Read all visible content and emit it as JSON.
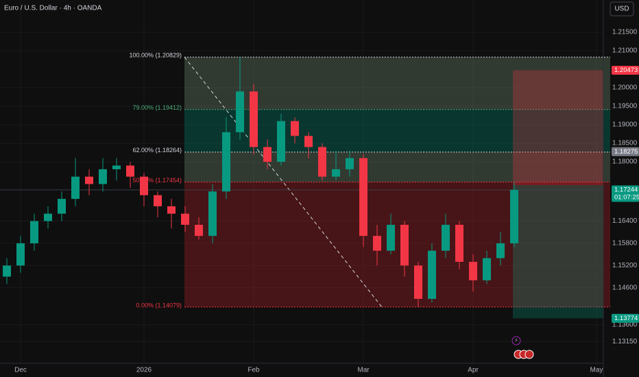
{
  "chart_data": {
    "type": "candlestick",
    "title": "Euro / U.S. Dollar · 4h · OANDA",
    "currency": "USD",
    "categories": [
      null,
      "Dec",
      null,
      null,
      null,
      null,
      null,
      null,
      null,
      null,
      "2026",
      null,
      null,
      null,
      null,
      null,
      null,
      null,
      "Feb",
      null,
      null,
      null,
      null,
      null,
      null,
      null,
      "Mar",
      null,
      null,
      null,
      null,
      null,
      null,
      null,
      "Apr",
      null,
      null,
      null,
      null,
      null,
      null,
      null,
      null,
      "May"
    ],
    "ohlc": {
      "open": [
        1.149,
        1.152,
        1.158,
        1.164,
        1.166,
        1.17,
        1.176,
        1.174,
        1.178,
        1.179,
        1.176,
        1.171,
        1.168,
        1.166,
        1.163,
        1.16,
        1.172,
        1.188,
        1.199,
        1.184,
        1.18,
        1.191,
        1.187,
        1.184,
        1.176,
        1.178,
        1.181,
        1.16,
        1.156,
        1.163,
        1.152,
        1.143,
        1.156,
        1.163,
        1.153,
        1.148,
        1.154,
        1.158,
        null,
        null,
        null,
        null,
        null,
        null
      ],
      "high": [
        1.154,
        1.16,
        1.166,
        1.168,
        1.172,
        1.181,
        1.178,
        1.181,
        1.181,
        1.18,
        1.177,
        1.172,
        1.17,
        1.168,
        1.165,
        1.174,
        1.192,
        1.20829,
        1.201,
        1.186,
        1.193,
        1.192,
        1.188,
        1.185,
        1.183,
        1.183,
        1.182,
        1.163,
        1.166,
        1.164,
        1.153,
        1.158,
        1.166,
        1.164,
        1.155,
        1.156,
        1.161,
        1.1745,
        null,
        null,
        null,
        null,
        null,
        null
      ],
      "low": [
        1.147,
        1.15,
        1.156,
        1.162,
        1.164,
        1.168,
        1.171,
        1.172,
        1.175,
        1.173,
        1.168,
        1.165,
        1.162,
        1.161,
        1.159,
        1.158,
        1.17,
        1.186,
        1.182,
        1.178,
        1.179,
        1.185,
        1.181,
        1.175,
        1.175,
        1.176,
        1.157,
        1.152,
        1.155,
        1.149,
        1.1408,
        1.142,
        1.154,
        1.151,
        1.145,
        1.147,
        1.152,
        1.157,
        null,
        null,
        null,
        null,
        null,
        null
      ],
      "close": [
        1.152,
        1.158,
        1.164,
        1.166,
        1.17,
        1.176,
        1.174,
        1.178,
        1.179,
        1.176,
        1.171,
        1.168,
        1.166,
        1.163,
        1.16,
        1.172,
        1.188,
        1.199,
        1.184,
        1.18,
        1.191,
        1.187,
        1.184,
        1.176,
        1.178,
        1.181,
        1.16,
        1.156,
        1.163,
        1.152,
        1.143,
        1.156,
        1.163,
        1.153,
        1.148,
        1.154,
        1.158,
        1.17244,
        null,
        null,
        null,
        null,
        null,
        null
      ]
    },
    "up_color": "#089981",
    "down_color": "#f23645",
    "ylim": [
      1.1256,
      1.2237
    ],
    "yticks": [
      {
        "value": 1.215,
        "label": "1.21500"
      },
      {
        "value": 1.21,
        "label": "1.21000"
      },
      {
        "value": 1.2,
        "label": "1.20000"
      },
      {
        "value": 1.195,
        "label": "1.19500"
      },
      {
        "value": 1.19,
        "label": "1.19000"
      },
      {
        "value": 1.185,
        "label": "1.18500"
      },
      {
        "value": 1.18,
        "label": "1.18000"
      },
      {
        "value": 1.164,
        "label": "1.16400"
      },
      {
        "value": 1.158,
        "label": "1.15800"
      },
      {
        "value": 1.152,
        "label": "1.15200"
      },
      {
        "value": 1.146,
        "label": "1.14600"
      },
      {
        "value": 1.136,
        "label": "1.13600"
      },
      {
        "value": 1.1315,
        "label": "1.13150"
      }
    ],
    "grid": true,
    "fib": {
      "levels": [
        {
          "label": "100.00% (1.20829)",
          "value": 1.20829,
          "color": "#d1d4dc"
        },
        {
          "label": "79.00% (1.19412)",
          "value": 1.19412,
          "color": "#4caf7d"
        },
        {
          "label": "62.00% (1.18264)",
          "value": 1.18264,
          "color": "#d1d4dc"
        },
        {
          "label": "50.00% (1.17454)",
          "value": 1.17454,
          "color": "#f23645"
        },
        {
          "label": "0.00% (1.14079)",
          "value": 1.14079,
          "color": "#f23645"
        }
      ],
      "zone_colors": [
        "rgba(120,150,120,0.32)",
        "rgba(0,120,100,0.38)",
        "rgba(120,150,120,0.32)",
        "rgba(150,30,35,0.42)"
      ]
    },
    "position": {
      "stop": 1.20473,
      "entry": 1.1737,
      "target": 1.13774
    },
    "price_labels": [
      {
        "value": 1.20473,
        "color": "#f23645"
      },
      {
        "value": 1.18275,
        "color": "#787b86"
      },
      {
        "value": 1.17244,
        "color": "#089981"
      },
      {
        "value": 1.13774,
        "color": "#089981"
      }
    ],
    "countdown": "01:07:25"
  }
}
